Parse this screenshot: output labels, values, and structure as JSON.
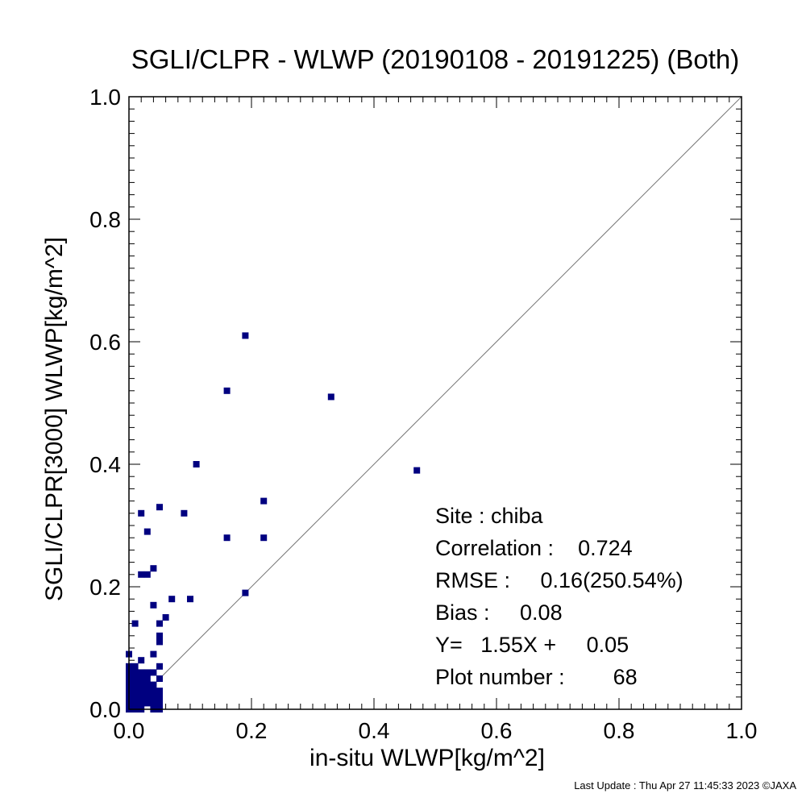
{
  "footer": "Last Update : Thu Apr 27 11:45:33 2023  ©JAXA",
  "chart_data": {
    "type": "scatter",
    "title": "SGLI/CLPR - WLWP (20190108 - 20191225) (Both)",
    "xlabel": "in-situ WLWP[kg/m^2]",
    "ylabel": "SGLI/CLPR[3000]    WLWP[kg/m^2]",
    "xlim": [
      0.0,
      1.0
    ],
    "ylim": [
      0.0,
      1.0
    ],
    "x_ticks": [
      "0.0",
      "0.2",
      "0.4",
      "0.6",
      "0.8",
      "1.0"
    ],
    "y_ticks": [
      "0.0",
      "0.2",
      "0.4",
      "0.6",
      "0.8",
      "1.0"
    ],
    "one_to_one_line": true,
    "marker_color": "#000080",
    "stats": {
      "site": "Site : chiba",
      "correlation": "Correlation :    0.724",
      "rmse": "RMSE :     0.16(250.54%)",
      "bias": "Bias :     0.08",
      "regression": "Y=   1.55X +     0.05",
      "plot_number": "Plot number :        68"
    },
    "points": [
      [
        0.19,
        0.61
      ],
      [
        0.16,
        0.52
      ],
      [
        0.33,
        0.51
      ],
      [
        0.11,
        0.4
      ],
      [
        0.47,
        0.39
      ],
      [
        0.05,
        0.33
      ],
      [
        0.02,
        0.32
      ],
      [
        0.09,
        0.32
      ],
      [
        0.22,
        0.34
      ],
      [
        0.03,
        0.29
      ],
      [
        0.16,
        0.28
      ],
      [
        0.22,
        0.28
      ],
      [
        0.04,
        0.23
      ],
      [
        0.02,
        0.22
      ],
      [
        0.03,
        0.22
      ],
      [
        0.19,
        0.19
      ],
      [
        0.07,
        0.18
      ],
      [
        0.1,
        0.18
      ],
      [
        0.04,
        0.17
      ],
      [
        0.06,
        0.15
      ],
      [
        0.01,
        0.14
      ],
      [
        0.05,
        0.14
      ],
      [
        0.05,
        0.12
      ],
      [
        0.05,
        0.11
      ],
      [
        0.0,
        0.09
      ],
      [
        0.04,
        0.09
      ],
      [
        0.02,
        0.08
      ],
      [
        0.01,
        0.07
      ],
      [
        0.05,
        0.07
      ],
      [
        0.0,
        0.06
      ],
      [
        0.01,
        0.06
      ],
      [
        0.02,
        0.06
      ],
      [
        0.03,
        0.06
      ],
      [
        0.04,
        0.06
      ],
      [
        0.05,
        0.05
      ],
      [
        0.0,
        0.05
      ],
      [
        0.02,
        0.05
      ],
      [
        0.0,
        0.04
      ],
      [
        0.01,
        0.04
      ],
      [
        0.03,
        0.04
      ],
      [
        0.04,
        0.04
      ],
      [
        0.0,
        0.03
      ],
      [
        0.01,
        0.03
      ],
      [
        0.02,
        0.03
      ],
      [
        0.03,
        0.03
      ],
      [
        0.05,
        0.03
      ],
      [
        0.0,
        0.02
      ],
      [
        0.01,
        0.02
      ],
      [
        0.02,
        0.02
      ],
      [
        0.04,
        0.02
      ],
      [
        0.05,
        0.02
      ],
      [
        0.0,
        0.01
      ],
      [
        0.01,
        0.01
      ],
      [
        0.03,
        0.01
      ],
      [
        0.04,
        0.01
      ],
      [
        0.05,
        0.01
      ],
      [
        0.02,
        0.0
      ],
      [
        0.0,
        0.0
      ],
      [
        0.01,
        0.0
      ],
      [
        0.04,
        0.0
      ],
      [
        0.05,
        0.0
      ],
      [
        0.03,
        0.02
      ],
      [
        0.02,
        0.01
      ],
      [
        0.0,
        0.07
      ],
      [
        0.01,
        0.05
      ],
      [
        0.03,
        0.05
      ],
      [
        0.04,
        0.03
      ],
      [
        0.02,
        0.04
      ]
    ]
  }
}
